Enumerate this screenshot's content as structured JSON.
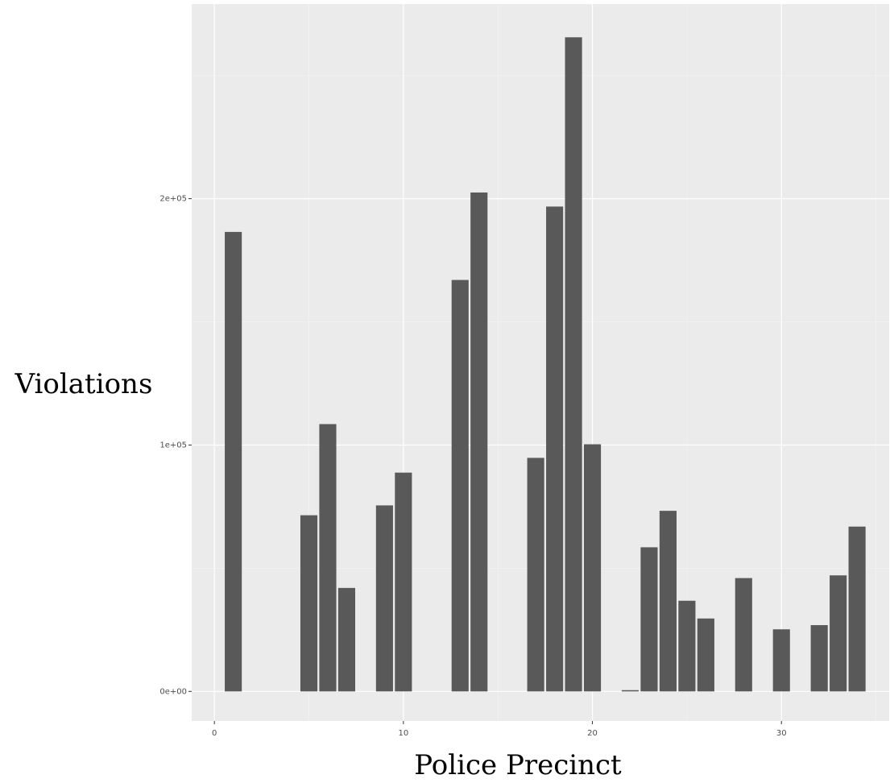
{
  "chart_data": {
    "type": "bar",
    "title": "",
    "xlabel": "Police Precinct",
    "ylabel": "Violations",
    "xlim": [
      -1.2,
      35.7
    ],
    "ylim": [
      -12000,
      279000
    ],
    "x_ticks": [
      0,
      10,
      20,
      30
    ],
    "x_tick_labels": [
      "0",
      "10",
      "20",
      "30"
    ],
    "y_ticks": [
      0,
      100000,
      200000
    ],
    "y_tick_labels": [
      "0e+00",
      "1e+05",
      "2e+05"
    ],
    "bar_width": 0.9,
    "grid": true,
    "legend": "none",
    "bar_color": "#595959",
    "panel_color": "#ebebeb",
    "grid_major_color": "#ffffff",
    "grid_minor_color": "#f4f4f4",
    "x": [
      1,
      5,
      6,
      7,
      9,
      10,
      13,
      14,
      17,
      18,
      19,
      20,
      22,
      23,
      24,
      25,
      26,
      28,
      30,
      32,
      33,
      34
    ],
    "values": [
      186500,
      71500,
      108500,
      42000,
      75500,
      88800,
      167000,
      202500,
      94800,
      196800,
      265500,
      100300,
      500,
      58500,
      73300,
      36800,
      29600,
      46000,
      25200,
      26900,
      47100,
      66900
    ]
  }
}
